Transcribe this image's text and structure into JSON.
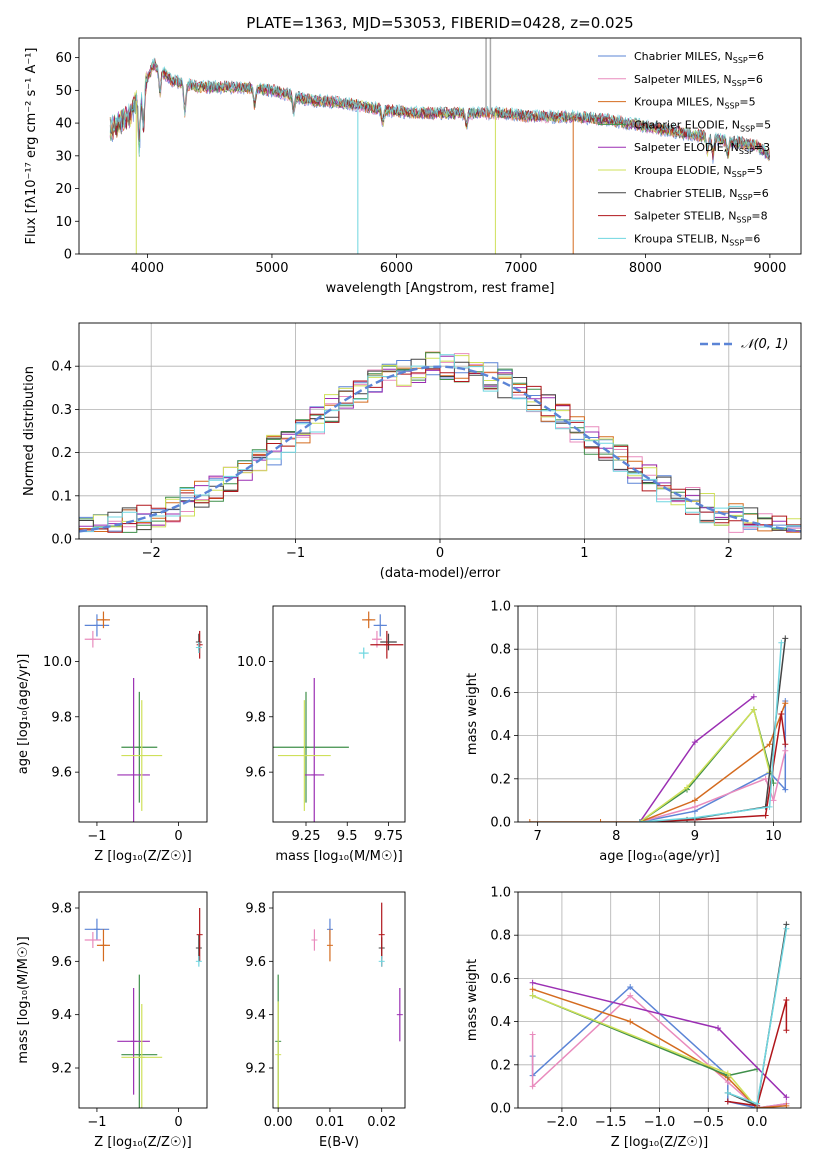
{
  "colors": {
    "chabrier_miles": "#5b84d6",
    "salpeter_miles": "#e98bbd",
    "kroupa_miles": "#d46b1f",
    "chabrier_elodie": "#3f8f4a",
    "salpeter_elodie": "#9b2fb3",
    "kroupa_elodie": "#cfe05a",
    "chabrier_stelib": "#444444",
    "salpeter_stelib": "#b0161b",
    "kroupa_stelib": "#6fd6e0",
    "gaussian": "#5b84d6",
    "grid": "#b0b0b0"
  },
  "chart_data": [
    {
      "id": "spectrum",
      "type": "line",
      "title": "PLATE=1363, MJD=53053, FIBERID=0428, z=0.025",
      "xlabel": "wavelength [Angstrom, rest frame]",
      "ylabel": "Flux [fλ10⁻¹⁷ erg cm⁻² s⁻¹ A⁻¹]",
      "xlim": [
        3450,
        9250
      ],
      "ylim": [
        0,
        66
      ],
      "xticks": [
        4000,
        5000,
        6000,
        7000,
        8000,
        9000
      ],
      "yticks": [
        0,
        10,
        20,
        30,
        40,
        50,
        60
      ],
      "grid": false,
      "legend_position": "top-right",
      "legend": [
        {
          "key": "chabrier_miles",
          "base": "Chabrier MILES, N",
          "sub": "SSP",
          "tail": "=6"
        },
        {
          "key": "salpeter_miles",
          "base": "Salpeter MILES, N",
          "sub": "SSP",
          "tail": "=6"
        },
        {
          "key": "kroupa_miles",
          "base": "Kroupa MILES, N",
          "sub": "SSP",
          "tail": "=5"
        },
        {
          "key": "chabrier_elodie",
          "base": "Chabrier ELODIE, N",
          "sub": "SSP",
          "tail": "=5"
        },
        {
          "key": "salpeter_elodie",
          "base": "Salpeter ELODIE, N",
          "sub": "SSP",
          "tail": "=3"
        },
        {
          "key": "kroupa_elodie",
          "base": "Kroupa ELODIE, N",
          "sub": "SSP",
          "tail": "=5"
        },
        {
          "key": "chabrier_stelib",
          "base": "Chabrier STELIB, N",
          "sub": "SSP",
          "tail": "=6"
        },
        {
          "key": "salpeter_stelib",
          "base": "Salpeter STELIB, N",
          "sub": "SSP",
          "tail": "=8"
        },
        {
          "key": "kroupa_stelib",
          "base": "Kroupa STELIB, N",
          "sub": "SSP",
          "tail": "=6"
        }
      ],
      "continuum": [
        [
          3700,
          38
        ],
        [
          3850,
          42
        ],
        [
          3950,
          50
        ],
        [
          4050,
          58
        ],
        [
          4200,
          53
        ],
        [
          4400,
          51
        ],
        [
          4700,
          51
        ],
        [
          5000,
          50
        ],
        [
          5300,
          47
        ],
        [
          5600,
          46
        ],
        [
          5900,
          44
        ],
        [
          6200,
          43
        ],
        [
          6500,
          43
        ],
        [
          6800,
          43
        ],
        [
          7100,
          42
        ],
        [
          7400,
          42
        ],
        [
          7700,
          41
        ],
        [
          8000,
          39
        ],
        [
          8300,
          37
        ],
        [
          8600,
          35
        ],
        [
          8900,
          33
        ],
        [
          9000,
          30
        ]
      ],
      "dropouts": [
        {
          "key": "kroupa_elodie",
          "x": 3910,
          "y": 0
        },
        {
          "key": "kroupa_stelib",
          "x": 5690,
          "y": 0
        },
        {
          "key": "kroupa_elodie",
          "x": 6795,
          "y": 0
        },
        {
          "key": "kroupa_miles",
          "x": 7420,
          "y": 0
        }
      ],
      "spikes": [
        {
          "x": 6720,
          "y": 66
        },
        {
          "x": 6755,
          "y": 66
        }
      ]
    },
    {
      "id": "residuals",
      "type": "area",
      "xlabel": "(data-model)/error",
      "ylabel": "Normed distribution",
      "xlim": [
        -2.5,
        2.5
      ],
      "ylim": [
        0,
        0.5
      ],
      "xticks": [
        -2,
        -1,
        0,
        1,
        2
      ],
      "yticks": [
        0.0,
        0.1,
        0.2,
        0.3,
        0.4
      ],
      "grid": true,
      "legend_position": "top-right",
      "legend": [
        {
          "key": "gaussian",
          "text": "𝒩(0, 1)"
        }
      ],
      "bin_width": 0.1,
      "bin_start": -2.5
    },
    {
      "id": "age_vs_Z",
      "type": "scatter",
      "xlabel": "Z [log₁₀(Z/Z☉)]",
      "ylabel": "age  [log₁₀(age/yr)]",
      "xlim": [
        -1.22,
        0.35
      ],
      "ylim": [
        9.42,
        10.2
      ],
      "xticks": [
        -1,
        0
      ],
      "yticks": [
        9.6,
        9.8,
        10.0
      ],
      "grid": false,
      "points": [
        {
          "key": "chabrier_miles",
          "x": -1.0,
          "y": 10.13,
          "xerr": 0.15,
          "yerr": 0.04
        },
        {
          "key": "salpeter_miles",
          "x": -1.05,
          "y": 10.08,
          "xerr": 0.1,
          "yerr": 0.03
        },
        {
          "key": "kroupa_miles",
          "x": -0.92,
          "y": 10.15,
          "xerr": 0.08,
          "yerr": 0.03
        },
        {
          "key": "chabrier_elodie",
          "x": -0.48,
          "y": 9.69,
          "xerr": 0.22,
          "yerr": 0.2
        },
        {
          "key": "salpeter_elodie",
          "x": -0.55,
          "y": 9.59,
          "xerr": 0.2,
          "yerr": 0.35
        },
        {
          "key": "kroupa_elodie",
          "x": -0.45,
          "y": 9.66,
          "xerr": 0.25,
          "yerr": 0.2
        },
        {
          "key": "chabrier_stelib",
          "x": 0.25,
          "y": 10.07,
          "xerr": 0.0,
          "yerr": 0.03
        },
        {
          "key": "salpeter_stelib",
          "x": 0.26,
          "y": 10.06,
          "xerr": 0.0,
          "yerr": 0.05
        },
        {
          "key": "kroupa_stelib",
          "x": 0.25,
          "y": 10.05,
          "xerr": 0.0,
          "yerr": 0.02
        }
      ]
    },
    {
      "id": "age_vs_mass",
      "type": "scatter",
      "xlabel": "mass [log₁₀(M/M☉)]",
      "ylabel": "",
      "xlim": [
        9.05,
        9.85
      ],
      "ylim": [
        9.42,
        10.2
      ],
      "xticks": [
        9.25,
        9.5,
        9.75
      ],
      "yticks": [
        9.6,
        9.8,
        10.0
      ],
      "grid": false,
      "points": [
        {
          "key": "chabrier_miles",
          "x": 9.7,
          "y": 10.13,
          "xerr": 0.04,
          "yerr": 0.04
        },
        {
          "key": "salpeter_miles",
          "x": 9.68,
          "y": 10.08,
          "xerr": 0.03,
          "yerr": 0.03
        },
        {
          "key": "kroupa_miles",
          "x": 9.63,
          "y": 10.15,
          "xerr": 0.04,
          "yerr": 0.03
        },
        {
          "key": "chabrier_elodie",
          "x": 9.25,
          "y": 9.69,
          "xerr": 0.26,
          "yerr": 0.2
        },
        {
          "key": "salpeter_elodie",
          "x": 9.3,
          "y": 9.59,
          "xerr": 0.06,
          "yerr": 0.35
        },
        {
          "key": "kroupa_elodie",
          "x": 9.24,
          "y": 9.66,
          "xerr": 0.16,
          "yerr": 0.2
        },
        {
          "key": "chabrier_stelib",
          "x": 9.75,
          "y": 10.07,
          "xerr": 0.05,
          "yerr": 0.03
        },
        {
          "key": "salpeter_stelib",
          "x": 9.74,
          "y": 10.06,
          "xerr": 0.1,
          "yerr": 0.05
        },
        {
          "key": "kroupa_stelib",
          "x": 9.6,
          "y": 10.03,
          "xerr": 0.03,
          "yerr": 0.02
        }
      ]
    },
    {
      "id": "mw_vs_age",
      "type": "line",
      "xlabel": "age  [log₁₀(age/yr)]",
      "ylabel": "mass weight",
      "xlim": [
        6.75,
        10.35
      ],
      "ylim": [
        0,
        1.0
      ],
      "xticks": [
        7,
        8,
        9,
        10
      ],
      "yticks": [
        0.0,
        0.2,
        0.4,
        0.6,
        0.8,
        1.0
      ],
      "grid": true,
      "series": [
        {
          "key": "chabrier_miles",
          "x": [
            8.3,
            9.0,
            9.95,
            10.15,
            10.15
          ],
          "y": [
            0.0,
            0.05,
            0.23,
            0.15,
            0.56
          ]
        },
        {
          "key": "salpeter_miles",
          "x": [
            8.3,
            9.0,
            9.9,
            10.0,
            10.15
          ],
          "y": [
            0.0,
            0.07,
            0.2,
            0.1,
            0.33
          ]
        },
        {
          "key": "kroupa_miles",
          "x": [
            6.9,
            7.8,
            8.3,
            9.0,
            9.95,
            10.15
          ],
          "y": [
            0.0,
            0.0,
            0.0,
            0.1,
            0.36,
            0.55
          ]
        },
        {
          "key": "chabrier_elodie",
          "x": [
            8.3,
            8.9,
            9.75,
            10.0
          ],
          "y": [
            0.0,
            0.15,
            0.52,
            0.18
          ]
        },
        {
          "key": "salpeter_elodie",
          "x": [
            8.3,
            9.0,
            9.75
          ],
          "y": [
            0.0,
            0.37,
            0.58
          ]
        },
        {
          "key": "kroupa_elodie",
          "x": [
            8.3,
            8.9,
            9.75,
            9.95
          ],
          "y": [
            0.0,
            0.16,
            0.52,
            0.23
          ]
        },
        {
          "key": "chabrier_stelib",
          "x": [
            8.3,
            8.9,
            9.9,
            10.15
          ],
          "y": [
            0.0,
            0.01,
            0.07,
            0.85
          ]
        },
        {
          "key": "salpeter_stelib",
          "x": [
            8.3,
            9.0,
            9.9,
            10.1,
            10.15
          ],
          "y": [
            0.0,
            0.01,
            0.03,
            0.5,
            0.36
          ]
        },
        {
          "key": "kroupa_stelib",
          "x": [
            8.3,
            9.0,
            9.95,
            10.1
          ],
          "y": [
            0.0,
            0.02,
            0.07,
            0.83
          ]
        }
      ]
    },
    {
      "id": "mass_vs_Z",
      "type": "scatter",
      "xlabel": "Z [log₁₀(Z/Z☉)]",
      "ylabel": "mass [log₁₀(M/M☉)]",
      "xlim": [
        -1.22,
        0.35
      ],
      "ylim": [
        9.05,
        9.86
      ],
      "xticks": [
        -1,
        0
      ],
      "yticks": [
        9.2,
        9.4,
        9.6,
        9.8
      ],
      "grid": false,
      "points": [
        {
          "key": "chabrier_miles",
          "x": -1.0,
          "y": 9.72,
          "xerr": 0.15,
          "yerr": 0.04
        },
        {
          "key": "salpeter_miles",
          "x": -1.05,
          "y": 9.68,
          "xerr": 0.1,
          "yerr": 0.03
        },
        {
          "key": "kroupa_miles",
          "x": -0.92,
          "y": 9.66,
          "xerr": 0.08,
          "yerr": 0.06
        },
        {
          "key": "chabrier_elodie",
          "x": -0.48,
          "y": 9.25,
          "xerr": 0.22,
          "yerr": 0.3
        },
        {
          "key": "salpeter_elodie",
          "x": -0.55,
          "y": 9.3,
          "xerr": 0.2,
          "yerr": 0.2
        },
        {
          "key": "kroupa_elodie",
          "x": -0.45,
          "y": 9.24,
          "xerr": 0.25,
          "yerr": 0.2
        },
        {
          "key": "chabrier_stelib",
          "x": 0.25,
          "y": 9.65,
          "xerr": 0.0,
          "yerr": 0.05
        },
        {
          "key": "salpeter_stelib",
          "x": 0.26,
          "y": 9.7,
          "xerr": 0.0,
          "yerr": 0.1
        },
        {
          "key": "kroupa_stelib",
          "x": 0.25,
          "y": 9.6,
          "xerr": 0.0,
          "yerr": 0.02
        }
      ]
    },
    {
      "id": "mass_vs_ebv",
      "type": "scatter",
      "xlabel": "E(B-V)",
      "ylabel": "",
      "xlim": [
        -0.001,
        0.0245
      ],
      "ylim": [
        9.05,
        9.86
      ],
      "xticks": [
        0.0,
        0.01,
        0.02
      ],
      "xticklabels": [
        "0.00",
        "0.01",
        "0.02"
      ],
      "yticks": [
        9.2,
        9.4,
        9.6,
        9.8
      ],
      "grid": false,
      "points": [
        {
          "key": "chabrier_miles",
          "x": 0.01,
          "y": 9.72,
          "xerr": 0.0,
          "yerr": 0.04
        },
        {
          "key": "salpeter_miles",
          "x": 0.007,
          "y": 9.68,
          "xerr": 0.0,
          "yerr": 0.04
        },
        {
          "key": "kroupa_miles",
          "x": 0.01,
          "y": 9.66,
          "xerr": 0.0,
          "yerr": 0.06
        },
        {
          "key": "chabrier_elodie",
          "x": 0.0,
          "y": 9.3,
          "xerr": 0.0,
          "yerr": 0.25
        },
        {
          "key": "salpeter_elodie",
          "x": 0.0235,
          "y": 9.4,
          "xerr": 0.0,
          "yerr": 0.1
        },
        {
          "key": "kroupa_elodie",
          "x": 0.0,
          "y": 9.25,
          "xerr": 0.0,
          "yerr": 0.2
        },
        {
          "key": "chabrier_stelib",
          "x": 0.02,
          "y": 9.65,
          "xerr": 0.0,
          "yerr": 0.04
        },
        {
          "key": "salpeter_stelib",
          "x": 0.02,
          "y": 9.7,
          "xerr": 0.0,
          "yerr": 0.12
        },
        {
          "key": "kroupa_stelib",
          "x": 0.02,
          "y": 9.6,
          "xerr": 0.0,
          "yerr": 0.02
        }
      ]
    },
    {
      "id": "mw_vs_Z",
      "type": "line",
      "xlabel": "Z [log₁₀(Z/Z☉)]",
      "ylabel": "mass weight",
      "xlim": [
        -2.45,
        0.45
      ],
      "ylim": [
        0,
        1.0
      ],
      "xticks": [
        -2.0,
        -1.5,
        -1.0,
        -0.5,
        0.0
      ],
      "xticklabels": [
        "−2.0",
        "−1.5",
        "−1.0",
        "−0.5",
        "0.0"
      ],
      "yticks": [
        0.0,
        0.2,
        0.4,
        0.6,
        0.8,
        1.0
      ],
      "grid": true,
      "series": [
        {
          "key": "chabrier_miles",
          "x": [
            -2.3,
            -2.3,
            -1.3,
            -0.3,
            -0.3,
            0.0,
            0.3
          ],
          "y": [
            0.24,
            0.15,
            0.56,
            0.15,
            0.03,
            0.0,
            0.02
          ]
        },
        {
          "key": "salpeter_miles",
          "x": [
            -2.3,
            -2.3,
            -1.3,
            -0.3,
            0.0,
            0.3
          ],
          "y": [
            0.34,
            0.1,
            0.52,
            0.12,
            0.0,
            0.02
          ]
        },
        {
          "key": "kroupa_miles",
          "x": [
            -2.3,
            -1.3,
            -0.3,
            0.0,
            0.3
          ],
          "y": [
            0.55,
            0.4,
            0.14,
            0.0,
            0.01
          ]
        },
        {
          "key": "chabrier_elodie",
          "x": [
            -2.3,
            -0.3,
            0.0
          ],
          "y": [
            0.52,
            0.15,
            0.18
          ]
        },
        {
          "key": "salpeter_elodie",
          "x": [
            -2.3,
            -0.4,
            0.3
          ],
          "y": [
            0.58,
            0.37,
            0.05
          ]
        },
        {
          "key": "kroupa_elodie",
          "x": [
            -2.3,
            -0.3,
            0.0
          ],
          "y": [
            0.52,
            0.16,
            0.0
          ]
        },
        {
          "key": "chabrier_stelib",
          "x": [
            -0.3,
            0.0,
            0.3
          ],
          "y": [
            0.07,
            0.01,
            0.85
          ]
        },
        {
          "key": "salpeter_stelib",
          "x": [
            -0.3,
            0.0,
            0.3,
            0.3
          ],
          "y": [
            0.03,
            0.01,
            0.5,
            0.36
          ]
        },
        {
          "key": "kroupa_stelib",
          "x": [
            -0.3,
            0.0,
            0.3
          ],
          "y": [
            0.07,
            0.02,
            0.83
          ]
        }
      ]
    }
  ]
}
